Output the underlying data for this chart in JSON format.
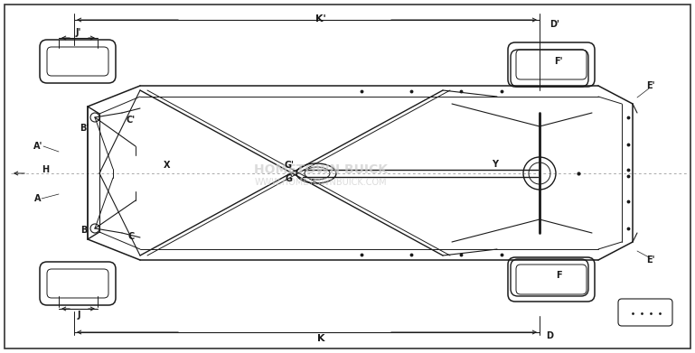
{
  "bg_color": "#ffffff",
  "line_color": "#1a1a1a",
  "fig_width": 7.69,
  "fig_height": 3.91,
  "dpi": 100,
  "wm1": "HOMETOWN BUICK",
  "wm2": "WWW.HOMETOWNBUICK.COM",
  "labels": {
    "Kp": "K'",
    "K": "K",
    "Jp": "J'",
    "J": "J",
    "Dp": "D'",
    "D": "D",
    "Ep_top": "E'",
    "Ep_bot": "E'",
    "Fp": "F'",
    "F": "F",
    "Ap": "A'",
    "A": "A",
    "Bp": "B'",
    "B": "B",
    "Cp": "C'",
    "C": "C",
    "H": "H",
    "X": "X",
    "Gp": "G'",
    "G": "G",
    "Y": "Y"
  }
}
